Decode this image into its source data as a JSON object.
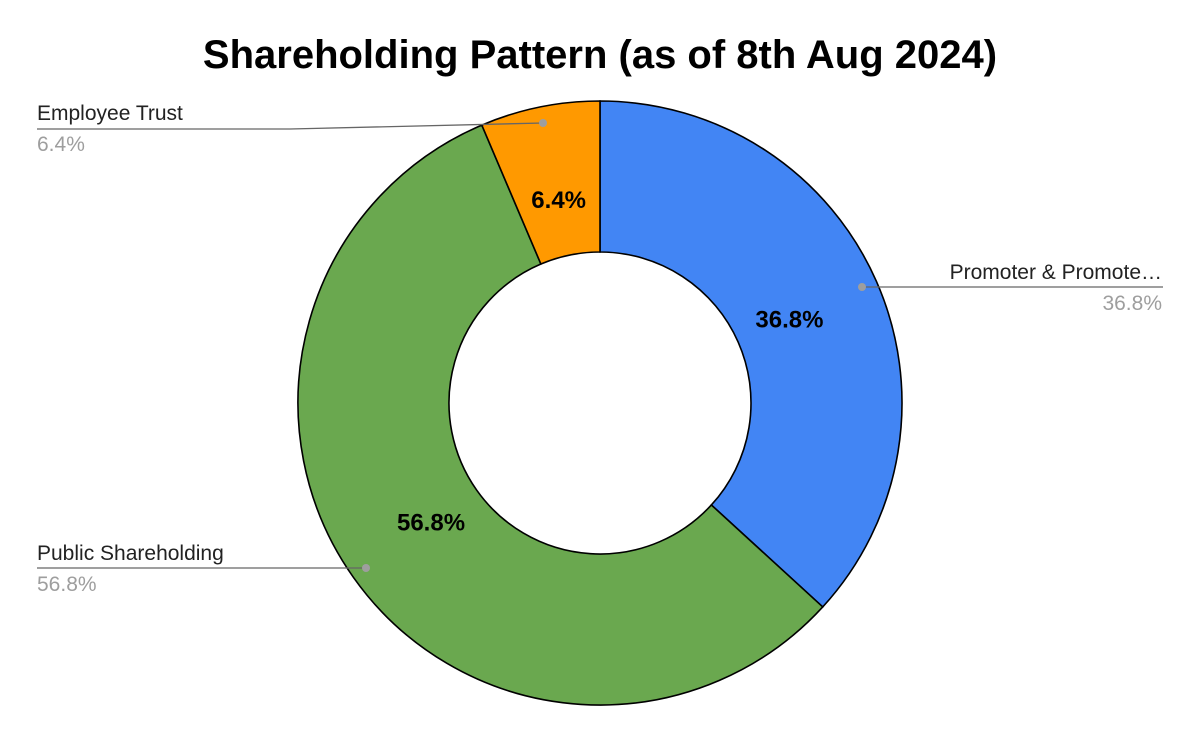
{
  "chart_data": {
    "type": "pie",
    "style": "donut",
    "title": "Shareholding Pattern (as of 8th Aug 2024)",
    "slices": [
      {
        "key": "promoter",
        "legend_label": "Promoter & Promote…",
        "value": 36.8,
        "percent_label": "36.8%",
        "color": "#4285f4"
      },
      {
        "key": "public",
        "legend_label": "Public Shareholding",
        "value": 56.8,
        "percent_label": "56.8%",
        "color": "#6aa84f"
      },
      {
        "key": "employee",
        "legend_label": "Employee Trust",
        "value": 6.4,
        "percent_label": "6.4%",
        "color": "#ff9900"
      }
    ],
    "start_angle": "12 o'clock",
    "direction": "clockwise",
    "labels_inside": true,
    "callout_labels": true,
    "legend": "none"
  }
}
